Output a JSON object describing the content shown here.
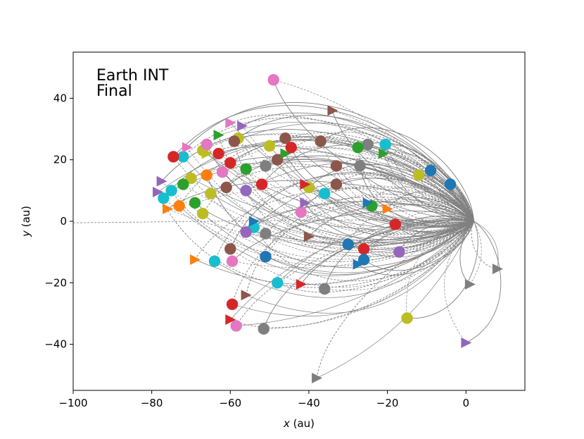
{
  "chart_data": {
    "type": "scatter",
    "title_lines": [
      "Earth INT",
      "Final"
    ],
    "xlabel_var": "x",
    "xlabel_unit": " (au)",
    "ylabel_var": "y",
    "ylabel_unit": " (au)",
    "xlim": [
      -100,
      15
    ],
    "ylim": [
      -55,
      55
    ],
    "xticks": [
      -100,
      -80,
      -60,
      -40,
      -20,
      0
    ],
    "yticks": [
      -40,
      -20,
      0,
      20,
      40
    ],
    "xtick_labels": [
      "−100",
      "−80",
      "−60",
      "−40",
      "−20",
      "0"
    ],
    "ytick_labels": [
      "−40",
      "−20",
      "0",
      "20",
      "40"
    ],
    "trail_color": "#808080",
    "palette": [
      "#1f77b4",
      "#ff7f0e",
      "#2ca02c",
      "#d62728",
      "#9467bd",
      "#8c564b",
      "#e377c2",
      "#7f7f7f",
      "#bcbd22",
      "#17becf"
    ],
    "circle_points": [
      {
        "x": -49,
        "y": 46,
        "c": 6
      },
      {
        "x": -20.5,
        "y": 25,
        "c": 9
      },
      {
        "x": -25,
        "y": 25,
        "c": 7
      },
      {
        "x": -27.5,
        "y": 24,
        "c": 2
      },
      {
        "x": -37,
        "y": 26,
        "c": 5
      },
      {
        "x": -46,
        "y": 27,
        "c": 5
      },
      {
        "x": -44.5,
        "y": 24,
        "c": 3
      },
      {
        "x": -50,
        "y": 24.5,
        "c": 8
      },
      {
        "x": -58,
        "y": 27,
        "c": 8
      },
      {
        "x": -59,
        "y": 26,
        "c": 5
      },
      {
        "x": -63,
        "y": 22,
        "c": 3
      },
      {
        "x": -67,
        "y": 23,
        "c": 8
      },
      {
        "x": -66,
        "y": 25,
        "c": 6
      },
      {
        "x": -72,
        "y": 21,
        "c": 9
      },
      {
        "x": -74.5,
        "y": 21,
        "c": 3
      },
      {
        "x": -9,
        "y": 16.5,
        "c": 0
      },
      {
        "x": -12,
        "y": 15,
        "c": 8
      },
      {
        "x": -33,
        "y": 18,
        "c": 5
      },
      {
        "x": -27,
        "y": 18,
        "c": 7
      },
      {
        "x": -48,
        "y": 20,
        "c": 5
      },
      {
        "x": -51,
        "y": 18,
        "c": 7
      },
      {
        "x": -56,
        "y": 17,
        "c": 2
      },
      {
        "x": -60,
        "y": 19,
        "c": 3
      },
      {
        "x": -62,
        "y": 16,
        "c": 6
      },
      {
        "x": -66,
        "y": 15,
        "c": 1
      },
      {
        "x": -70,
        "y": 14,
        "c": 8
      },
      {
        "x": -72,
        "y": 12,
        "c": 2
      },
      {
        "x": -75,
        "y": 10,
        "c": 9
      },
      {
        "x": -77,
        "y": 7.5,
        "c": 9
      },
      {
        "x": -73,
        "y": 5,
        "c": 1
      },
      {
        "x": -69,
        "y": 6,
        "c": 2
      },
      {
        "x": -65,
        "y": 9,
        "c": 8
      },
      {
        "x": -61,
        "y": 11,
        "c": 5
      },
      {
        "x": -56,
        "y": 10,
        "c": 4
      },
      {
        "x": -52,
        "y": 12,
        "c": 3
      },
      {
        "x": -4,
        "y": 12,
        "c": 0
      },
      {
        "x": -36,
        "y": 9,
        "c": 9
      },
      {
        "x": -33,
        "y": 12,
        "c": 5
      },
      {
        "x": -40,
        "y": 11,
        "c": 8
      },
      {
        "x": -54,
        "y": -2,
        "c": 9
      },
      {
        "x": -56,
        "y": -3.5,
        "c": 4
      },
      {
        "x": -51,
        "y": -4,
        "c": 7
      },
      {
        "x": -18,
        "y": -1,
        "c": 3
      },
      {
        "x": -30,
        "y": -7.5,
        "c": 0
      },
      {
        "x": -60,
        "y": -9,
        "c": 5
      },
      {
        "x": -26,
        "y": -9,
        "c": 3
      },
      {
        "x": -17,
        "y": -10,
        "c": 4
      },
      {
        "x": -51,
        "y": -11.5,
        "c": 0
      },
      {
        "x": -26,
        "y": -12.5,
        "c": 0
      },
      {
        "x": -64,
        "y": -13,
        "c": 9
      },
      {
        "x": -59.5,
        "y": -13,
        "c": 6
      },
      {
        "x": -48,
        "y": -20,
        "c": 9
      },
      {
        "x": -36,
        "y": -22,
        "c": 7
      },
      {
        "x": -59.5,
        "y": -27,
        "c": 3
      },
      {
        "x": -15,
        "y": -31.5,
        "c": 8
      },
      {
        "x": -58.5,
        "y": -34,
        "c": 6
      },
      {
        "x": -51.5,
        "y": -35,
        "c": 7
      },
      {
        "x": -24,
        "y": 5,
        "c": 2
      },
      {
        "x": -42,
        "y": 3,
        "c": 6
      },
      {
        "x": -67,
        "y": 2.5,
        "c": 8
      }
    ],
    "triangle_points": [
      {
        "x": -34,
        "y": 36,
        "c": 5
      },
      {
        "x": -60,
        "y": 32,
        "c": 6
      },
      {
        "x": -57,
        "y": 31,
        "c": 4
      },
      {
        "x": -63,
        "y": 28,
        "c": 2
      },
      {
        "x": -71,
        "y": 24,
        "c": 6
      },
      {
        "x": -66,
        "y": 22,
        "c": 8
      },
      {
        "x": -46,
        "y": 22,
        "c": 2
      },
      {
        "x": -21,
        "y": 22,
        "c": 2
      },
      {
        "x": -77.5,
        "y": 13,
        "c": 4
      },
      {
        "x": -78.5,
        "y": 9.5,
        "c": 4
      },
      {
        "x": -76,
        "y": 4,
        "c": 1
      },
      {
        "x": -41,
        "y": 12,
        "c": 3
      },
      {
        "x": -41,
        "y": 6,
        "c": 4
      },
      {
        "x": -25,
        "y": 6,
        "c": 0
      },
      {
        "x": -20,
        "y": 4,
        "c": 1
      },
      {
        "x": -54,
        "y": 0,
        "c": 0
      },
      {
        "x": -40,
        "y": -5,
        "c": 5
      },
      {
        "x": -69,
        "y": -12.5,
        "c": 1
      },
      {
        "x": -27.5,
        "y": -14,
        "c": 0
      },
      {
        "x": -56,
        "y": -24,
        "c": 5
      },
      {
        "x": -42,
        "y": -20.5,
        "c": 3
      },
      {
        "x": -60,
        "y": -32,
        "c": 3
      },
      {
        "x": 1,
        "y": -20.5,
        "c": 7
      },
      {
        "x": 8,
        "y": -15.5,
        "c": 7
      },
      {
        "x": 0,
        "y": -39.5,
        "c": 4
      },
      {
        "x": -38,
        "y": -51,
        "c": 7
      }
    ]
  }
}
